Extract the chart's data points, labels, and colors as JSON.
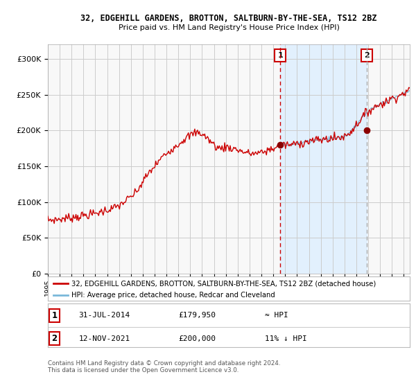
{
  "title": "32, EDGEHILL GARDENS, BROTTON, SALTBURN-BY-THE-SEA, TS12 2BZ",
  "subtitle": "Price paid vs. HM Land Registry's House Price Index (HPI)",
  "legend_line1": "32, EDGEHILL GARDENS, BROTTON, SALTBURN-BY-THE-SEA, TS12 2BZ (detached house)",
  "legend_line2": "HPI: Average price, detached house, Redcar and Cleveland",
  "annotation1_date": "31-JUL-2014",
  "annotation1_price": "£179,950",
  "annotation1_hpi": "≈ HPI",
  "annotation2_date": "12-NOV-2021",
  "annotation2_price": "£200,000",
  "annotation2_hpi": "11% ↓ HPI",
  "hpi_line_color": "#7ab8d9",
  "price_line_color": "#cc0000",
  "marker_color": "#8b0000",
  "shade_color": "#ddeeff",
  "vline1_color": "#cc0000",
  "vline2_color": "#aaaaaa",
  "grid_color": "#cccccc",
  "background_color": "#ffffff",
  "plot_bg_color": "#f8f8f8",
  "annotation_box_color": "#cc0000",
  "footer": "Contains HM Land Registry data © Crown copyright and database right 2024.\nThis data is licensed under the Open Government Licence v3.0.",
  "ylim": [
    0,
    320000
  ],
  "yticks": [
    0,
    50000,
    100000,
    150000,
    200000,
    250000,
    300000
  ],
  "xlim_start": 1995.0,
  "xlim_end": 2025.5,
  "sale1_year": 2014.58,
  "sale2_year": 2021.87,
  "sale1_price": 179950,
  "sale2_price": 200000,
  "hpi_anchors_x": [
    1995.0,
    1996.0,
    1997.0,
    1998.0,
    1999.0,
    2000.0,
    2001.0,
    2001.5,
    2002.0,
    2002.5,
    2003.0,
    2003.5,
    2004.0,
    2004.5,
    2005.0,
    2005.5,
    2006.0,
    2006.5,
    2007.0,
    2007.5,
    2008.0,
    2008.5,
    2009.0,
    2009.5,
    2010.0,
    2010.5,
    2011.0,
    2011.5,
    2012.0,
    2012.5,
    2013.0,
    2013.5,
    2014.0,
    2014.58,
    2015.0,
    2015.5,
    2016.0,
    2016.5,
    2017.0,
    2017.5,
    2018.0,
    2018.5,
    2019.0,
    2019.5,
    2020.0,
    2020.5,
    2021.0,
    2021.5,
    2021.87,
    2022.0,
    2022.5,
    2023.0,
    2023.5,
    2024.0,
    2024.5,
    2025.0,
    2025.5
  ],
  "hpi_anchors_y": [
    75000,
    76000,
    78500,
    81000,
    84000,
    89000,
    95000,
    101000,
    107000,
    115000,
    128000,
    140000,
    150000,
    160000,
    168000,
    175000,
    181000,
    188000,
    193000,
    197000,
    195000,
    188000,
    180000,
    175000,
    177000,
    175000,
    173000,
    170000,
    168000,
    168000,
    169000,
    172000,
    175000,
    179000,
    180000,
    180000,
    182000,
    183000,
    185000,
    186000,
    187000,
    188000,
    189000,
    190000,
    192000,
    198000,
    208000,
    218000,
    225000,
    227000,
    232000,
    237000,
    240000,
    245000,
    248000,
    252000,
    256000
  ]
}
